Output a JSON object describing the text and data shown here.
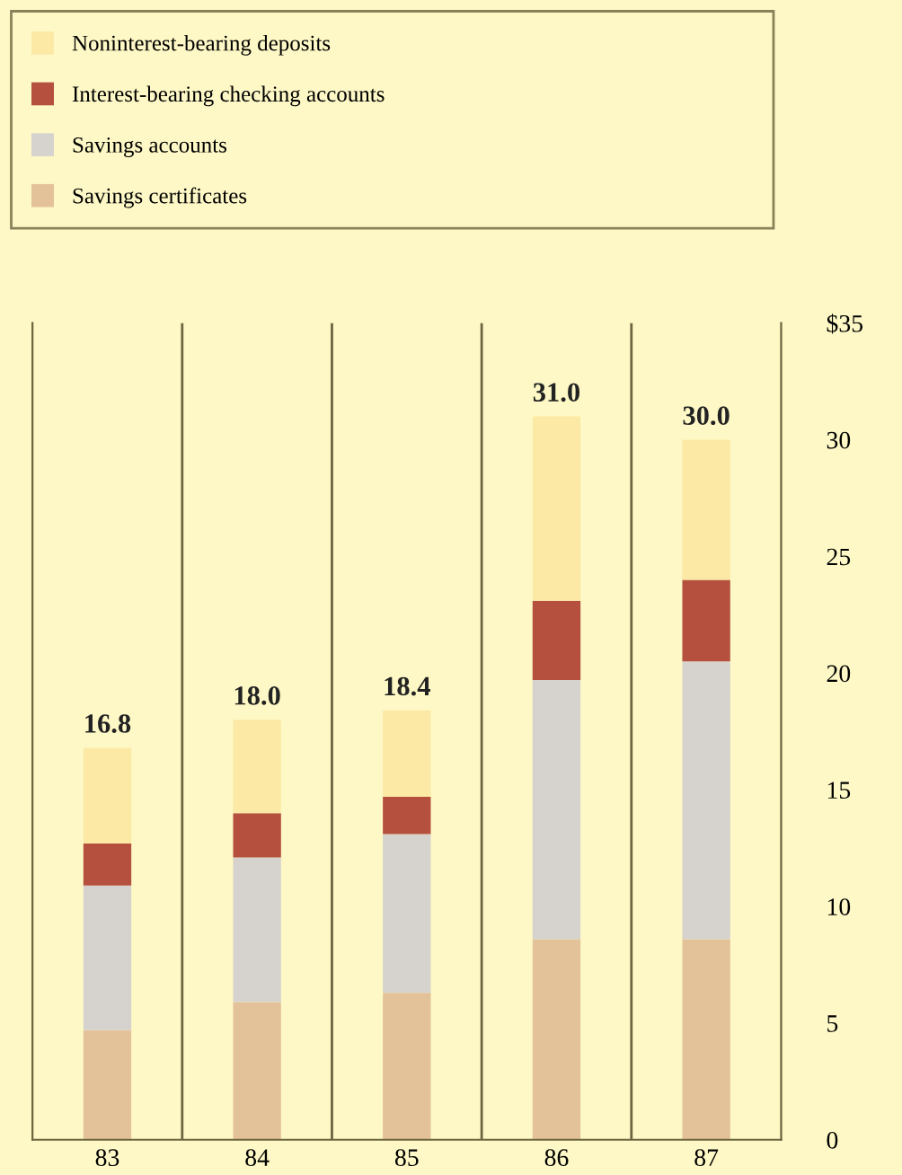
{
  "chart_data": {
    "type": "bar",
    "stacked": true,
    "categories": [
      "83",
      "84",
      "85",
      "86",
      "87"
    ],
    "series": [
      {
        "name": "Savings certificates",
        "color": "#e4c299",
        "values": [
          4.7,
          5.9,
          6.3,
          8.6,
          8.6
        ]
      },
      {
        "name": "Savings accounts",
        "color": "#d6d3cf",
        "values": [
          6.2,
          6.2,
          6.8,
          11.1,
          11.9
        ]
      },
      {
        "name": "Interest-bearing checking accounts",
        "color": "#b5503e",
        "values": [
          1.8,
          1.9,
          1.6,
          3.4,
          3.5
        ]
      },
      {
        "name": "Noninterest-bearing deposits",
        "color": "#fde9a6",
        "values": [
          4.1,
          4.0,
          3.7,
          7.9,
          6.0
        ]
      }
    ],
    "totals": [
      "16.8",
      "18.0",
      "18.4",
      "31.0",
      "30.0"
    ],
    "ylim": [
      0,
      35
    ],
    "yticks": [
      0,
      5,
      10,
      15,
      20,
      25,
      30,
      {
        "value": 35,
        "label": "$35"
      }
    ],
    "grid": "x",
    "legend": "top left"
  }
}
